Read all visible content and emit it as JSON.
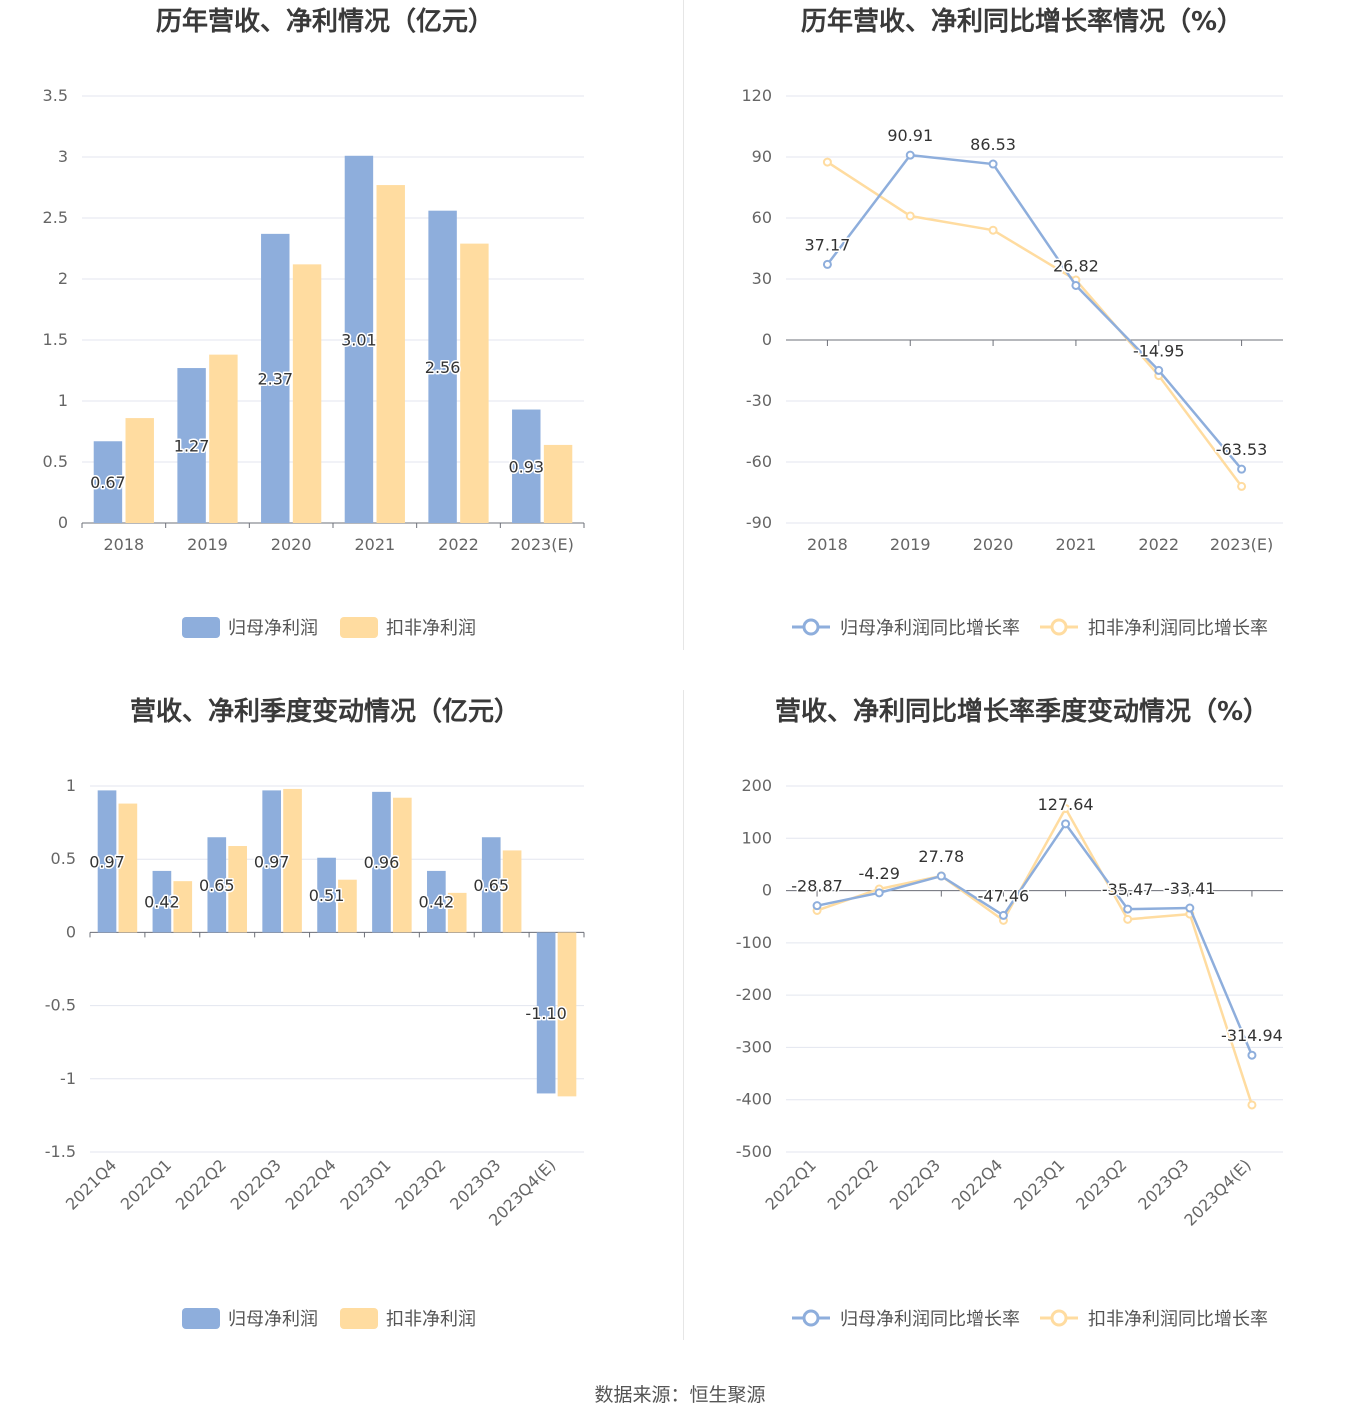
{
  "source_label": "数据来源：",
  "source_name": "恒生聚源",
  "chart_data": [
    {
      "type": "bar",
      "title": "历年营收、净利情况（亿元）",
      "categories": [
        "2018",
        "2019",
        "2020",
        "2021",
        "2022",
        "2023(E)"
      ],
      "ylim": [
        0,
        3.5
      ],
      "yticks": [
        "0",
        "0.5",
        "1",
        "1.5",
        "2",
        "2.5",
        "3",
        "3.5"
      ],
      "grid": true,
      "legend_position": "bottom-center",
      "series": [
        {
          "name": "归母净利润",
          "color": "#8eaedc",
          "values": [
            0.67,
            1.27,
            2.37,
            3.01,
            2.56,
            0.93
          ],
          "labels": [
            "0.67",
            "1.27",
            "2.37",
            "3.01",
            "2.56",
            "0.93"
          ]
        },
        {
          "name": "扣非净利润",
          "color": "#ffdca0",
          "values": [
            0.86,
            1.38,
            2.12,
            2.77,
            2.29,
            0.64
          ]
        }
      ]
    },
    {
      "type": "line",
      "title": "历年营收、净利同比增长率情况（%）",
      "categories": [
        "2018",
        "2019",
        "2020",
        "2021",
        "2022",
        "2023(E)"
      ],
      "ylim": [
        -90,
        120
      ],
      "yticks": [
        "-90",
        "-60",
        "-30",
        "0",
        "30",
        "60",
        "90",
        "120"
      ],
      "grid": true,
      "legend_position": "bottom-center",
      "series": [
        {
          "name": "归母净利润同比增长率",
          "color": "#8eaedc",
          "values": [
            37.17,
            90.91,
            86.53,
            26.82,
            -14.95,
            -63.53
          ],
          "labels": [
            "37.17",
            "90.91",
            "86.53",
            "26.82",
            "-14.95",
            "-63.53"
          ]
        },
        {
          "name": "扣非净利润同比增长率",
          "color": "#ffdca0",
          "values": [
            87.5,
            61,
            54,
            29.5,
            -17.5,
            -72
          ]
        }
      ]
    },
    {
      "type": "bar",
      "title": "营收、净利季度变动情况（亿元）",
      "categories": [
        "2021Q4",
        "2022Q1",
        "2022Q2",
        "2022Q3",
        "2022Q4",
        "2023Q1",
        "2023Q2",
        "2023Q3",
        "2023Q4(E)"
      ],
      "ylim": [
        -1.5,
        1
      ],
      "yticks": [
        "-1.5",
        "-1",
        "-0.5",
        "0",
        "0.5",
        "1"
      ],
      "grid": true,
      "legend_position": "bottom-center",
      "series": [
        {
          "name": "归母净利润",
          "color": "#8eaedc",
          "values": [
            0.97,
            0.42,
            0.65,
            0.97,
            0.51,
            0.96,
            0.42,
            0.65,
            -1.1
          ],
          "labels": [
            "0.97",
            "0.42",
            "0.65",
            "0.97",
            "0.51",
            "0.96",
            "0.42",
            "0.65",
            "-1.10"
          ]
        },
        {
          "name": "扣非净利润",
          "color": "#ffdca0",
          "values": [
            0.88,
            0.35,
            0.59,
            0.98,
            0.36,
            0.92,
            0.27,
            0.56,
            -1.12
          ]
        }
      ]
    },
    {
      "type": "line",
      "title": "营收、净利同比增长率季度变动情况（%）",
      "categories": [
        "2022Q1",
        "2022Q2",
        "2022Q3",
        "2022Q4",
        "2023Q1",
        "2023Q2",
        "2023Q3",
        "2023Q4(E)"
      ],
      "ylim": [
        -500,
        200
      ],
      "yticks": [
        "-500",
        "-400",
        "-300",
        "-200",
        "-100",
        "0",
        "100",
        "200"
      ],
      "grid": true,
      "legend_position": "bottom-center",
      "series": [
        {
          "name": "归母净利润同比增长率",
          "color": "#8eaedc",
          "values": [
            -28.87,
            -4.29,
            27.78,
            -47.46,
            127.64,
            -35.47,
            -33.41,
            -314.94
          ],
          "labels": [
            "-28.87",
            "-4.29",
            "27.78",
            "-47.46",
            "127.64",
            "-35.47",
            "-33.41",
            "-314.94"
          ]
        },
        {
          "name": "扣非净利润同比增长率",
          "color": "#ffdca0",
          "values": [
            -38,
            3,
            28,
            -57,
            157,
            -55,
            -45,
            -410
          ]
        }
      ]
    }
  ]
}
